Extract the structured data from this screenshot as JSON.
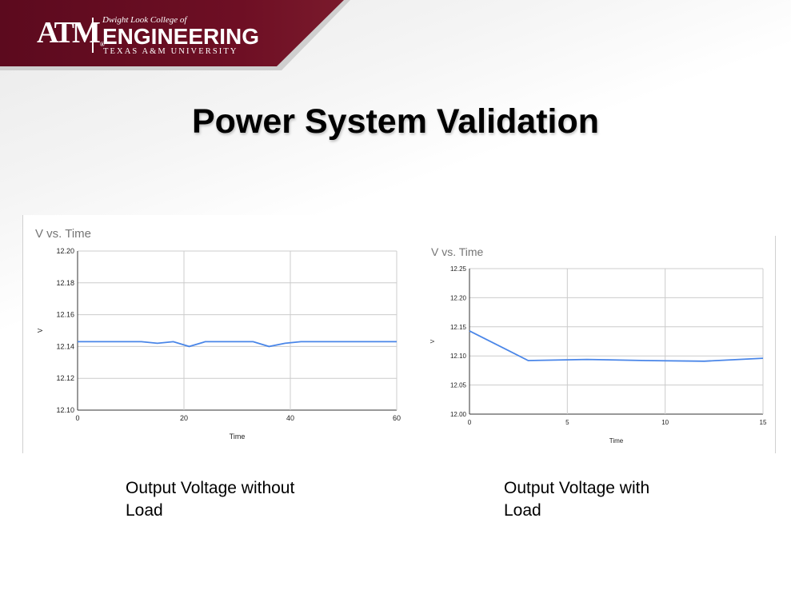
{
  "header": {
    "logo_text": "ATM",
    "college_line": "Dwight Look College of",
    "engineering_line": "ENGINEERING",
    "university_line": "TEXAS A&M UNIVERSITY",
    "brand_color": "#5c0a1e"
  },
  "slide": {
    "title": "Power System Validation"
  },
  "captions": {
    "left": "Output Voltage without\nLoad",
    "right": "Output Voltage with\nLoad"
  },
  "chart_data": [
    {
      "type": "line",
      "title": "V vs. Time",
      "xlabel": "Time",
      "ylabel": "V",
      "xlim": [
        0,
        60
      ],
      "ylim": [
        12.1,
        12.2
      ],
      "xticks": [
        "0",
        "20",
        "40",
        "60"
      ],
      "yticks": [
        "12.10",
        "12.12",
        "12.14",
        "12.16",
        "12.18",
        "12.20"
      ],
      "xtick_values": [
        0,
        20,
        40,
        60
      ],
      "ytick_values": [
        12.1,
        12.12,
        12.14,
        12.16,
        12.18,
        12.2
      ],
      "grid": true,
      "series": [
        {
          "color": "#4a86e8",
          "x": [
            0,
            3,
            6,
            9,
            12,
            15,
            18,
            21,
            24,
            27,
            30,
            33,
            36,
            39,
            42,
            45,
            48,
            51,
            54,
            57,
            60
          ],
          "y": [
            12.143,
            12.143,
            12.143,
            12.143,
            12.143,
            12.142,
            12.143,
            12.14,
            12.143,
            12.143,
            12.143,
            12.143,
            12.14,
            12.142,
            12.143,
            12.143,
            12.143,
            12.143,
            12.143,
            12.143,
            12.143
          ]
        }
      ]
    },
    {
      "type": "line",
      "title": "V vs. Time",
      "xlabel": "Time",
      "ylabel": "V",
      "xlim": [
        0,
        15
      ],
      "ylim": [
        12.0,
        12.25
      ],
      "xticks": [
        "0",
        "5",
        "10",
        "15"
      ],
      "yticks": [
        "12.00",
        "12.05",
        "12.10",
        "12.15",
        "12.20",
        "12.25"
      ],
      "xtick_values": [
        0,
        5,
        10,
        15
      ],
      "ytick_values": [
        12.0,
        12.05,
        12.1,
        12.15,
        12.2,
        12.25
      ],
      "grid": true,
      "series": [
        {
          "color": "#4a86e8",
          "x": [
            0,
            3,
            6,
            9,
            12,
            15
          ],
          "y": [
            12.143,
            12.092,
            12.094,
            12.092,
            12.091,
            12.096
          ]
        }
      ]
    }
  ]
}
